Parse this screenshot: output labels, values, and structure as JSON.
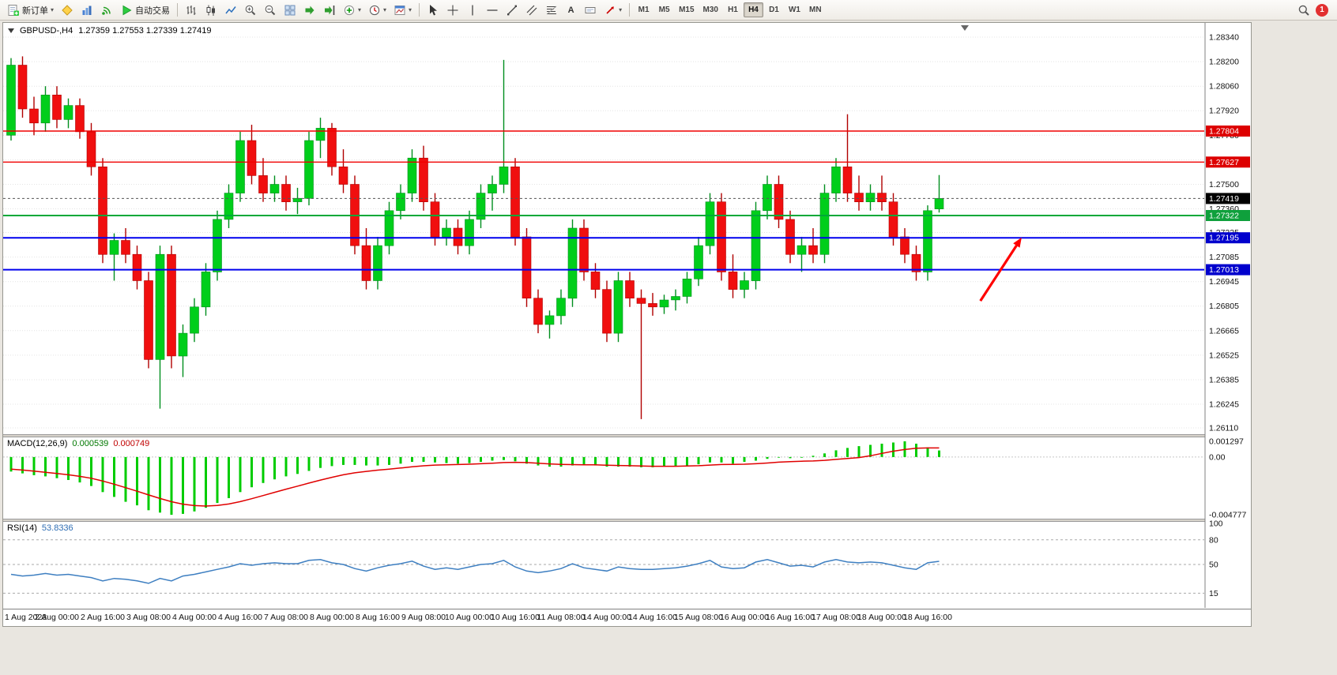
{
  "app": {
    "notification_count": "1"
  },
  "icons": {
    "caret": "▾"
  },
  "toolbar": {
    "new_order_label": "新订单",
    "auto_trading_label": "自动交易",
    "text_tool_label": "A",
    "timeframes": [
      {
        "label": "M1",
        "active": false
      },
      {
        "label": "M5",
        "active": false
      },
      {
        "label": "M15",
        "active": false
      },
      {
        "label": "M30",
        "active": false
      },
      {
        "label": "H1",
        "active": false
      },
      {
        "label": "H4",
        "active": true
      },
      {
        "label": "D1",
        "active": false
      },
      {
        "label": "W1",
        "active": false
      },
      {
        "label": "MN",
        "active": false
      }
    ]
  },
  "chart_data": {
    "type": "candlestick",
    "symbol": "GBPUSD-,H4",
    "ohlc_line": "1.27359 1.27553 1.27339 1.27419",
    "up_color": "#00ce1b",
    "down_color": "#f00f0f",
    "up_wick": "#008f1e",
    "down_wick": "#b00000",
    "price_axis_labels": [
      "1.28340",
      "1.28200",
      "1.28060",
      "1.27920",
      "1.27780",
      "1.27640",
      "1.27500",
      "1.27360",
      "1.27225",
      "1.27085",
      "1.26945",
      "1.26805",
      "1.26665",
      "1.26525",
      "1.26385",
      "1.26245",
      "1.26110"
    ],
    "time_labels": [
      "1 Aug 2023",
      "2 Aug 00:00",
      "2 Aug 16:00",
      "3 Aug 08:00",
      "4 Aug 00:00",
      "4 Aug 16:00",
      "7 Aug 08:00",
      "8 Aug 00:00",
      "8 Aug 16:00",
      "9 Aug 08:00",
      "10 Aug 00:00",
      "10 Aug 16:00",
      "11 Aug 08:00",
      "14 Aug 00:00",
      "14 Aug 16:00",
      "15 Aug 08:00",
      "16 Aug 00:00",
      "16 Aug 16:00",
      "17 Aug 08:00",
      "18 Aug 00:00",
      "18 Aug 16:00"
    ],
    "hlines": [
      {
        "price": 1.27804,
        "color": "#f00000",
        "width": 1.4,
        "badge": "1.27804",
        "badge_color": "#dd0000"
      },
      {
        "price": 1.27627,
        "color": "#f00000",
        "width": 1.4,
        "badge": "1.27627",
        "badge_color": "#dd0000"
      },
      {
        "price": 1.27322,
        "color": "#00a838",
        "width": 2,
        "badge": "1.27322",
        "badge_color": "#0fa03c"
      },
      {
        "price": 1.27195,
        "color": "#0000ee",
        "width": 2,
        "badge": "1.27195",
        "badge_color": "#0000cd"
      },
      {
        "price": 1.27013,
        "color": "#0000ee",
        "width": 2,
        "badge": "1.27013",
        "badge_color": "#0000cd"
      }
    ],
    "current_price": {
      "value": 1.27419,
      "badge": "1.27419",
      "badge_color": "#000000"
    },
    "arrow": {
      "from_bar": 84.6,
      "from_price": 1.26835,
      "to_bar": 88.2,
      "to_price": 1.27196,
      "color": "#ff0000"
    },
    "candles": [
      [
        1.2778,
        1.2822,
        1.2775,
        1.2818
      ],
      [
        1.2818,
        1.2823,
        1.2788,
        1.2793
      ],
      [
        1.2793,
        1.28,
        1.2778,
        1.2785
      ],
      [
        1.2785,
        1.2806,
        1.278,
        1.2801
      ],
      [
        1.2801,
        1.2806,
        1.2782,
        1.2787
      ],
      [
        1.2787,
        1.2799,
        1.2782,
        1.2795
      ],
      [
        1.2795,
        1.2799,
        1.2776,
        1.278
      ],
      [
        1.278,
        1.2785,
        1.2755,
        1.276
      ],
      [
        1.276,
        1.2765,
        1.2705,
        1.271
      ],
      [
        1.271,
        1.2722,
        1.2695,
        1.2718
      ],
      [
        1.2718,
        1.2725,
        1.2705,
        1.271
      ],
      [
        1.271,
        1.2715,
        1.269,
        1.2695
      ],
      [
        1.2695,
        1.27,
        1.2645,
        1.265
      ],
      [
        1.265,
        1.2715,
        1.2622,
        1.271
      ],
      [
        1.271,
        1.2715,
        1.2645,
        1.2652
      ],
      [
        1.2652,
        1.267,
        1.264,
        1.2665
      ],
      [
        1.2665,
        1.2685,
        1.266,
        1.268
      ],
      [
        1.268,
        1.2705,
        1.2675,
        1.27
      ],
      [
        1.27,
        1.2735,
        1.2695,
        1.273
      ],
      [
        1.273,
        1.275,
        1.2725,
        1.2745
      ],
      [
        1.2745,
        1.278,
        1.274,
        1.2775
      ],
      [
        1.2775,
        1.2784,
        1.275,
        1.2755
      ],
      [
        1.2755,
        1.2765,
        1.274,
        1.2745
      ],
      [
        1.2745,
        1.2755,
        1.274,
        1.275
      ],
      [
        1.275,
        1.2755,
        1.2735,
        1.274
      ],
      [
        1.274,
        1.2748,
        1.2733,
        1.2742
      ],
      [
        1.2742,
        1.278,
        1.2738,
        1.2775
      ],
      [
        1.2775,
        1.2788,
        1.2765,
        1.2782
      ],
      [
        1.2782,
        1.2785,
        1.2755,
        1.276
      ],
      [
        1.276,
        1.277,
        1.2745,
        1.275
      ],
      [
        1.275,
        1.2755,
        1.271,
        1.2715
      ],
      [
        1.2715,
        1.2725,
        1.269,
        1.2695
      ],
      [
        1.2695,
        1.272,
        1.269,
        1.2715
      ],
      [
        1.2715,
        1.274,
        1.271,
        1.2735
      ],
      [
        1.2735,
        1.275,
        1.273,
        1.2745
      ],
      [
        1.2745,
        1.277,
        1.274,
        1.2765
      ],
      [
        1.2765,
        1.2772,
        1.2735,
        1.274
      ],
      [
        1.274,
        1.2745,
        1.2715,
        1.272
      ],
      [
        1.272,
        1.273,
        1.2715,
        1.2725
      ],
      [
        1.2725,
        1.273,
        1.271,
        1.2715
      ],
      [
        1.2715,
        1.2735,
        1.271,
        1.273
      ],
      [
        1.273,
        1.275,
        1.2725,
        1.2745
      ],
      [
        1.2745,
        1.2755,
        1.2735,
        1.275
      ],
      [
        1.275,
        1.2821,
        1.2745,
        1.276
      ],
      [
        1.276,
        1.2765,
        1.2715,
        1.272
      ],
      [
        1.272,
        1.2725,
        1.268,
        1.2685
      ],
      [
        1.2685,
        1.269,
        1.2665,
        1.267
      ],
      [
        1.267,
        1.2678,
        1.2662,
        1.2675
      ],
      [
        1.2675,
        1.269,
        1.267,
        1.2685
      ],
      [
        1.2685,
        1.273,
        1.268,
        1.2725
      ],
      [
        1.2725,
        1.273,
        1.2695,
        1.27
      ],
      [
        1.27,
        1.2705,
        1.2685,
        1.269
      ],
      [
        1.269,
        1.2695,
        1.266,
        1.2665
      ],
      [
        1.2665,
        1.27,
        1.266,
        1.2695
      ],
      [
        1.2695,
        1.27,
        1.268,
        1.2685
      ],
      [
        1.2685,
        1.269,
        1.2616,
        1.2682
      ],
      [
        1.2682,
        1.2688,
        1.2675,
        1.268
      ],
      [
        1.268,
        1.2687,
        1.2676,
        1.2684
      ],
      [
        1.2684,
        1.269,
        1.2678,
        1.2686
      ],
      [
        1.2686,
        1.27,
        1.2682,
        1.2696
      ],
      [
        1.2696,
        1.272,
        1.2692,
        1.2715
      ],
      [
        1.2715,
        1.2745,
        1.271,
        1.274
      ],
      [
        1.274,
        1.2745,
        1.2695,
        1.27
      ],
      [
        1.27,
        1.271,
        1.2685,
        1.269
      ],
      [
        1.269,
        1.27,
        1.2685,
        1.2695
      ],
      [
        1.2695,
        1.274,
        1.269,
        1.2735
      ],
      [
        1.2735,
        1.2755,
        1.273,
        1.275
      ],
      [
        1.275,
        1.2755,
        1.2725,
        1.273
      ],
      [
        1.273,
        1.2735,
        1.2705,
        1.271
      ],
      [
        1.271,
        1.272,
        1.27,
        1.2715
      ],
      [
        1.2715,
        1.2725,
        1.2705,
        1.271
      ],
      [
        1.271,
        1.275,
        1.2705,
        1.2745
      ],
      [
        1.2745,
        1.2765,
        1.274,
        1.276
      ],
      [
        1.276,
        1.279,
        1.274,
        1.2745
      ],
      [
        1.2745,
        1.2755,
        1.2735,
        1.274
      ],
      [
        1.274,
        1.275,
        1.2735,
        1.2745
      ],
      [
        1.2745,
        1.2755,
        1.2735,
        1.274
      ],
      [
        1.274,
        1.2745,
        1.2715,
        1.272
      ],
      [
        1.272,
        1.2725,
        1.2705,
        1.271
      ],
      [
        1.271,
        1.2715,
        1.2695,
        1.27
      ],
      [
        1.27,
        1.2738,
        1.2695,
        1.2735
      ],
      [
        1.27359,
        1.27553,
        1.27339,
        1.27419
      ]
    ],
    "macd": {
      "header": "MACD(12,26,9)",
      "value_main": "0.000539",
      "value_signal": "0.000749",
      "axis_max": "0.001297",
      "axis_zero": "0.00",
      "axis_min": "-0.004777",
      "hist_color": "#00cc00",
      "signal_color": "#e00000",
      "hist": [
        -0.0012,
        -0.00135,
        -0.0015,
        -0.0016,
        -0.00175,
        -0.0019,
        -0.0021,
        -0.0024,
        -0.0029,
        -0.0033,
        -0.0037,
        -0.004,
        -0.0044,
        -0.0046,
        -0.00478,
        -0.0047,
        -0.0045,
        -0.0042,
        -0.0038,
        -0.0034,
        -0.0029,
        -0.0025,
        -0.00215,
        -0.00185,
        -0.0016,
        -0.0014,
        -0.00115,
        -0.0009,
        -0.00075,
        -0.00065,
        -0.00065,
        -0.0007,
        -0.0007,
        -0.00065,
        -0.00055,
        -0.0004,
        -0.0004,
        -0.00045,
        -0.0005,
        -0.00055,
        -0.0005,
        -0.0004,
        -0.0003,
        -0.00025,
        -0.00035,
        -0.00055,
        -0.0007,
        -0.0008,
        -0.0008,
        -0.0007,
        -0.00065,
        -0.0007,
        -0.0008,
        -0.0008,
        -0.0008,
        -0.00085,
        -0.00085,
        -0.0008,
        -0.00075,
        -0.0007,
        -0.0006,
        -0.00045,
        -0.00045,
        -0.00055,
        -0.0004,
        -0.0003,
        -0.00015,
        -5e-05,
        -0.0001,
        0,
        0.0001,
        0.0003,
        0.00055,
        0.00075,
        0.0009,
        0.001,
        0.0011,
        0.0012,
        0.0013,
        0.0011,
        0.0008,
        0.00054
      ],
      "signal": [
        -0.001,
        -0.00108,
        -0.00117,
        -0.00126,
        -0.00136,
        -0.00147,
        -0.0016,
        -0.00176,
        -0.00199,
        -0.00225,
        -0.00254,
        -0.00283,
        -0.00314,
        -0.00343,
        -0.0037,
        -0.0039,
        -0.00402,
        -0.00406,
        -0.00401,
        -0.00389,
        -0.00369,
        -0.00345,
        -0.00319,
        -0.00292,
        -0.00266,
        -0.00241,
        -0.00216,
        -0.00191,
        -0.00168,
        -0.00147,
        -0.00131,
        -0.00119,
        -0.00109,
        -0.001,
        -0.00091,
        -0.00081,
        -0.00073,
        -0.00067,
        -0.00064,
        -0.00062,
        -0.0006,
        -0.00056,
        -0.00051,
        -0.00046,
        -0.00044,
        -0.00046,
        -0.00051,
        -0.00057,
        -0.00061,
        -0.00063,
        -0.00064,
        -0.00065,
        -0.00068,
        -0.0007,
        -0.00072,
        -0.00075,
        -0.00077,
        -0.00077,
        -0.00077,
        -0.00075,
        -0.00072,
        -0.00067,
        -0.00062,
        -0.00061,
        -0.0006,
        -0.00056,
        -0.0005,
        -0.00043,
        -0.00038,
        -0.00035,
        -0.00033,
        -0.00028,
        -0.0002,
        -0.00012,
        -5e-05,
        0.0001,
        0.0003,
        0.00048,
        0.00062,
        0.00072,
        0.00075,
        0.00075
      ]
    },
    "rsi": {
      "header": "RSI(14)",
      "value": "53.8336",
      "color": "#3e7fc1",
      "levels": [
        "100",
        "80",
        "50",
        "15"
      ],
      "series": [
        38,
        36,
        37,
        39,
        37,
        38,
        36,
        34,
        30,
        33,
        32,
        30,
        27,
        33,
        30,
        36,
        38,
        41,
        44,
        47,
        51,
        49,
        51,
        52,
        51,
        51,
        55,
        56,
        52,
        50,
        45,
        42,
        46,
        49,
        51,
        54,
        48,
        44,
        46,
        44,
        47,
        50,
        51,
        55,
        47,
        42,
        40,
        42,
        45,
        51,
        46,
        44,
        42,
        47,
        45,
        44,
        44,
        45,
        46,
        48,
        51,
        55,
        47,
        45,
        46,
        53,
        56,
        52,
        48,
        49,
        47,
        53,
        56,
        53,
        52,
        53,
        52,
        49,
        46,
        44,
        52,
        53.8
      ]
    }
  }
}
